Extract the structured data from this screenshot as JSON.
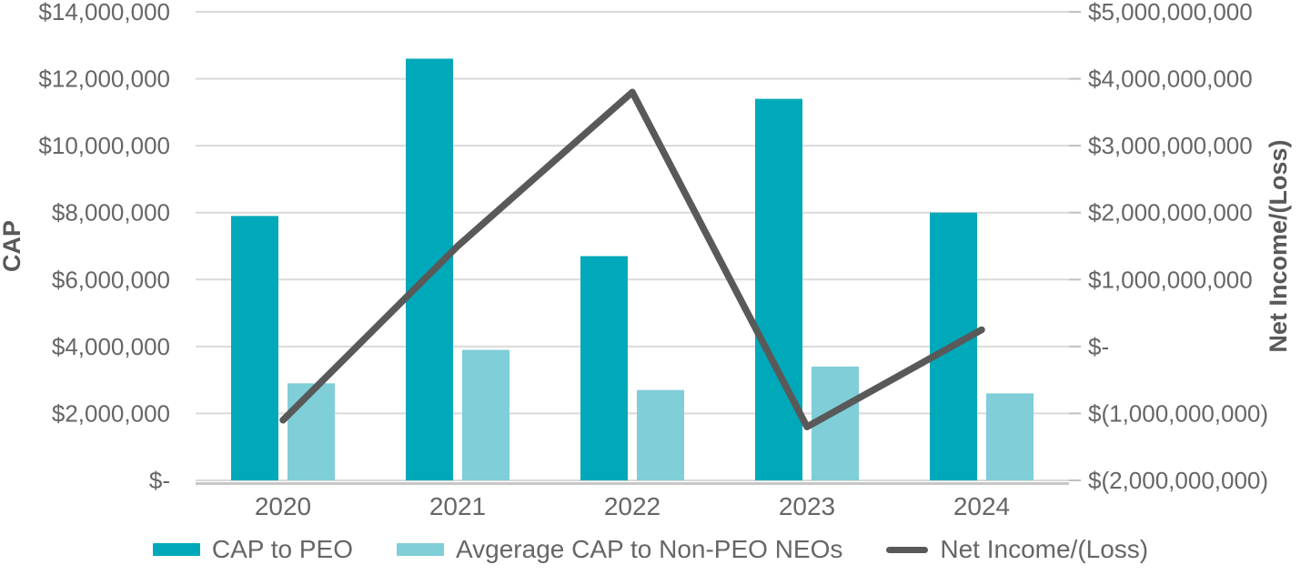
{
  "chart_data": {
    "type": "bar",
    "subtype": "bar-line-combo-dual-axis",
    "categories": [
      "2020",
      "2021",
      "2022",
      "2023",
      "2024"
    ],
    "series": [
      {
        "name": "CAP to PEO",
        "render": "bar",
        "axis": "left",
        "color": "#00A9BA",
        "values": [
          7900000,
          12600000,
          6700000,
          11400000,
          8000000
        ]
      },
      {
        "name": "Avgerage CAP to Non-PEO NEOs",
        "render": "bar",
        "axis": "left",
        "color": "#7FCED8",
        "values": [
          2900000,
          3900000,
          2700000,
          3400000,
          2600000
        ]
      },
      {
        "name": "Net Income/(Loss)",
        "render": "line",
        "axis": "right",
        "color": "#595959",
        "values": [
          -1100000000,
          1500000000,
          3800000000,
          -1200000000,
          250000000
        ]
      }
    ],
    "left_axis": {
      "title": "CAP",
      "min": 0,
      "max": 14000000,
      "ticks": [
        {
          "label": "$14,000,000",
          "value": 14000000
        },
        {
          "label": "$12,000,000",
          "value": 12000000
        },
        {
          "label": "$10,000,000",
          "value": 10000000
        },
        {
          "label": "$8,000,000",
          "value": 8000000
        },
        {
          "label": "$6,000,000",
          "value": 6000000
        },
        {
          "label": "$4,000,000",
          "value": 4000000
        },
        {
          "label": "$2,000,000",
          "value": 2000000
        },
        {
          "label": "$-",
          "value": 0
        }
      ]
    },
    "right_axis": {
      "title": "Net Income/(Loss)",
      "min": -2000000000,
      "max": 5000000000,
      "ticks": [
        {
          "label": "$5,000,000,000",
          "value": 5000000000
        },
        {
          "label": "$4,000,000,000",
          "value": 4000000000
        },
        {
          "label": "$3,000,000,000",
          "value": 3000000000
        },
        {
          "label": "$2,000,000,000",
          "value": 2000000000
        },
        {
          "label": "$1,000,000,000",
          "value": 1000000000
        },
        {
          "label": "$-",
          "value": 0
        },
        {
          "label": "$(1,000,000,000)",
          "value": -1000000000
        },
        {
          "label": "$(2,000,000,000)",
          "value": -2000000000
        }
      ]
    },
    "grid": true,
    "legend_position": "bottom"
  },
  "legend": {
    "items": [
      {
        "label": "CAP to PEO",
        "color": "#00A9BA",
        "swatch": "bar"
      },
      {
        "label": "Avgerage CAP to Non-PEO NEOs",
        "color": "#7FCED8",
        "swatch": "bar"
      },
      {
        "label": "Net Income/(Loss)",
        "color": "#595959",
        "swatch": "line"
      }
    ]
  },
  "colors": {
    "bar_primary": "#00A9BA",
    "bar_secondary": "#7FCED8",
    "line_series": "#595959",
    "gridline": "#D9D9D9",
    "axis_line": "#C6C6C6",
    "tick_mark": "#BFBFBF",
    "tick_text": "#666666",
    "axis_title_text": "#595959"
  }
}
